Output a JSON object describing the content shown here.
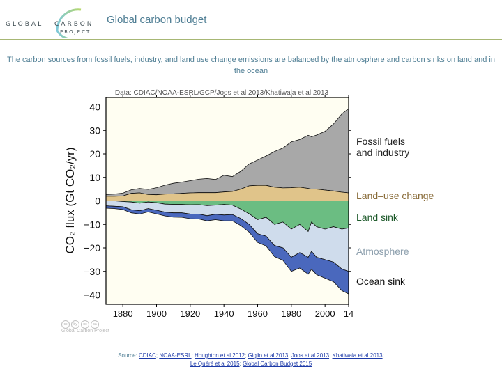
{
  "header": {
    "logo": {
      "line1": "GLOBAL",
      "line2": "CARBON",
      "line3": "PROJECT"
    },
    "title": "Global carbon budget"
  },
  "subtitle": "The carbon sources from fossil fuels, industry, and land use change emissions are balanced by the atmosphere and carbon sinks on land and in the ocean",
  "credit": {
    "icons": [
      "cc",
      "by",
      "nc",
      "sa"
    ],
    "text": "Global Carbon Project"
  },
  "source": {
    "prefix": "Source:",
    "links": [
      "CDIAC",
      "NOAA-ESRL",
      "Houghton et al 2012",
      "Giglio et al 2013",
      "Joos et al 2013",
      "Khatiwala et al 2013",
      "Le Quéré et al 2015",
      "Global Carbon Budget 2015"
    ]
  },
  "colors": {
    "plot_bg": "#fffef2",
    "fossil": "#a8a8a8",
    "landuse": "#e0c48a",
    "landsink": "#6bbd82",
    "atmosphere": "#cfdcec",
    "ocean": "#4a68bd",
    "text_accent": "#4f7e94",
    "landuse_label": "#8a6d3b",
    "landsink_label": "#1e5a2b",
    "atmosphere_label": "#8ea0ae"
  },
  "chart_data": {
    "type": "area",
    "title": "Data: CDIAC/NOAA-ESRL/GCP/Joos et al 2013/Khatiwala et al 2013",
    "xlabel": "",
    "ylabel": "CO₂ flux (Gt CO₂/yr)",
    "xlim": [
      1870,
      2014
    ],
    "ylim": [
      -44,
      44
    ],
    "x_ticks": [
      1880,
      1900,
      1920,
      1940,
      1960,
      1980,
      2000,
      2014
    ],
    "x_tick_labels": [
      "1880",
      "1900",
      "1920",
      "1940",
      "1960",
      "1980",
      "2000",
      "14"
    ],
    "y_ticks": [
      40,
      30,
      20,
      10,
      0,
      -10,
      -20,
      -30,
      -40
    ],
    "y_tick_labels": [
      "40",
      "30",
      "20",
      "10",
      "0",
      "−10",
      "−20",
      "−30",
      "−40"
    ],
    "legend_placement": "right",
    "x": [
      1870,
      1875,
      1880,
      1885,
      1890,
      1895,
      1900,
      1905,
      1910,
      1915,
      1920,
      1925,
      1930,
      1935,
      1940,
      1945,
      1950,
      1955,
      1960,
      1965,
      1970,
      1975,
      1980,
      1985,
      1990,
      1992,
      1995,
      2000,
      2005,
      2010,
      2014
    ],
    "series": [
      {
        "name": "Fossil fuels and industry",
        "label": "Fossil fuels\nand industry",
        "values": [
          0.7,
          0.9,
          1.2,
          1.5,
          1.9,
          2.2,
          3.0,
          3.8,
          4.5,
          4.8,
          5.2,
          5.7,
          6.0,
          5.6,
          7.1,
          6.3,
          7.6,
          9.3,
          10.8,
          12.5,
          15.2,
          17.0,
          19.5,
          20.3,
          22.6,
          22.3,
          23.0,
          25.0,
          28.5,
          33.3,
          35.9
        ]
      },
      {
        "name": "Land-use change",
        "label": "Land–use change",
        "values": [
          2.0,
          2.0,
          2.1,
          3.2,
          3.4,
          2.7,
          2.6,
          2.9,
          3.0,
          3.2,
          3.4,
          3.5,
          3.5,
          3.5,
          3.8,
          4.0,
          5.0,
          6.4,
          6.6,
          6.6,
          5.8,
          5.5,
          5.6,
          5.8,
          5.3,
          5.0,
          5.0,
          4.6,
          4.2,
          3.7,
          3.4
        ]
      },
      {
        "name": "Land sink",
        "label": "Land sink",
        "values": [
          0.0,
          0.0,
          -0.3,
          -0.5,
          -1.0,
          -0.5,
          -0.8,
          -1.4,
          -1.5,
          -1.5,
          -1.7,
          -1.6,
          -2.0,
          -1.8,
          -1.5,
          -1.8,
          -3.5,
          -5.5,
          -8.0,
          -7.0,
          -10.0,
          -9.0,
          -12.0,
          -10.0,
          -13.0,
          -9.0,
          -11.0,
          -12.0,
          -11.0,
          -12.0,
          -11.5
        ]
      },
      {
        "name": "Atmosphere",
        "label": "Atmosphere",
        "values": [
          -2.1,
          -2.3,
          -2.2,
          -3.3,
          -3.2,
          -2.8,
          -3.2,
          -3.4,
          -3.6,
          -3.6,
          -3.9,
          -4.0,
          -4.3,
          -3.9,
          -4.5,
          -4.0,
          -4.0,
          -4.5,
          -6.0,
          -8.0,
          -9.0,
          -11.0,
          -12.0,
          -12.0,
          -11.0,
          -12.5,
          -13.0,
          -13.0,
          -15.0,
          -17.0,
          -18.5
        ]
      },
      {
        "name": "Ocean sink",
        "label": "Ocean sink",
        "values": [
          -1.0,
          -1.0,
          -1.2,
          -1.3,
          -1.4,
          -1.4,
          -1.5,
          -1.6,
          -1.8,
          -1.9,
          -2.0,
          -2.1,
          -2.2,
          -2.3,
          -2.5,
          -2.7,
          -3.0,
          -3.3,
          -3.7,
          -4.2,
          -4.7,
          -5.3,
          -6.0,
          -6.6,
          -7.2,
          -7.6,
          -7.4,
          -7.9,
          -8.4,
          -9.2,
          -9.6
        ]
      }
    ]
  }
}
